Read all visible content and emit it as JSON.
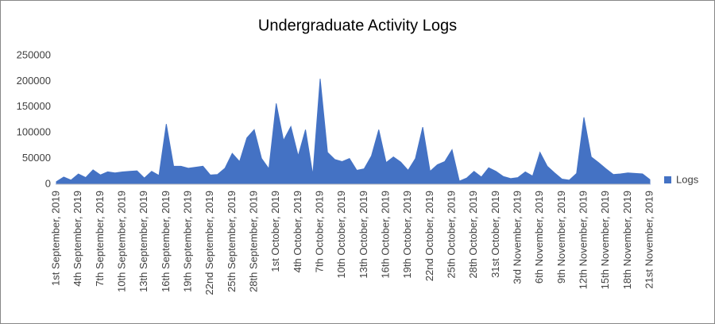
{
  "chart_data": {
    "type": "area",
    "title": "Undergraduate Activity Logs",
    "categories": [
      "1st September, 2019",
      null,
      null,
      "4th September, 2019",
      null,
      null,
      "7th September, 2019",
      null,
      null,
      "10th September, 2019",
      null,
      null,
      "13th September, 2019",
      null,
      null,
      "16th September, 2019",
      null,
      null,
      "19th September, 2019",
      null,
      null,
      "22nd September, 2019",
      null,
      null,
      "25th September, 2019",
      null,
      null,
      "28th September, 2019",
      null,
      null,
      "1st October, 2019",
      null,
      null,
      "4th October, 2019",
      null,
      null,
      "7th October, 2019",
      null,
      null,
      "10th October, 2019",
      null,
      null,
      "13th October, 2019",
      null,
      null,
      "16th October, 2019",
      null,
      null,
      "19th October, 2019",
      null,
      null,
      "22nd October, 2019",
      null,
      null,
      "25th October, 2019",
      null,
      null,
      "28th October, 2019",
      null,
      null,
      "31st October, 2019",
      null,
      null,
      "3rd November, 2019",
      null,
      null,
      "6th November, 2019",
      null,
      null,
      "9th November, 2019",
      null,
      null,
      "12th November, 2019",
      null,
      null,
      "15th November, 2019",
      null,
      null,
      "18th November, 2019",
      null,
      null,
      "21st November, 2019"
    ],
    "series": [
      {
        "name": "Logs",
        "color": "#4472c4",
        "values": [
          5000,
          14000,
          8000,
          20000,
          13000,
          28000,
          18000,
          24000,
          22000,
          24000,
          25000,
          26000,
          12000,
          25000,
          17000,
          117000,
          35000,
          35000,
          31000,
          33000,
          35000,
          18000,
          19000,
          31000,
          60000,
          44000,
          90000,
          106000,
          50000,
          30000,
          157000,
          85000,
          112000,
          55000,
          106000,
          18000,
          205000,
          62000,
          48000,
          44000,
          50000,
          27000,
          30000,
          55000,
          106000,
          42000,
          53000,
          43000,
          27000,
          50000,
          111000,
          25000,
          38000,
          44000,
          67000,
          6000,
          12000,
          25000,
          14000,
          32000,
          25000,
          15000,
          11000,
          13000,
          24000,
          16000,
          62000,
          35000,
          22000,
          10000,
          8000,
          21000,
          130000,
          53000,
          42000,
          30000,
          19000,
          20000,
          22000,
          21000,
          20000,
          9000
        ]
      }
    ],
    "ylim": [
      0,
      250000
    ],
    "yticks": [
      0,
      50000,
      100000,
      150000,
      200000,
      250000
    ],
    "grid": false,
    "legend": "right"
  }
}
